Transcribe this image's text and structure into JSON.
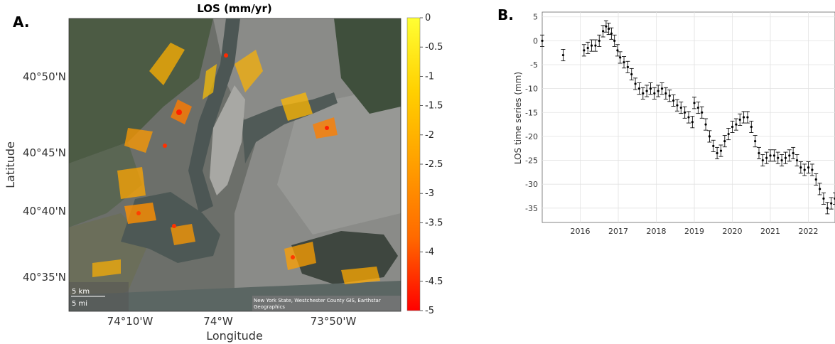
{
  "panel_a": {
    "label": "A.",
    "title": "LOS (mm/yr)",
    "ylabel": "Latitude",
    "xlabel": "Longitude",
    "lat_ticks": [
      "40°50'N",
      "40°45'N",
      "40°40'N",
      "40°35'N"
    ],
    "lon_ticks": [
      "74°10'W",
      "74°W",
      "73°50'W"
    ],
    "scalebar_km": "5 km",
    "scalebar_mi": "5 mi",
    "attribution_line1": "New York State, Westchester County GIS, Earthstar",
    "attribution_line2": "Geographics",
    "colorbar": {
      "ticks": [
        "0",
        "-0.5",
        "-1",
        "-1.5",
        "-2",
        "-2.5",
        "-3",
        "-3.5",
        "-4",
        "-4.5",
        "-5"
      ],
      "range": [
        -5,
        0
      ],
      "colors": [
        "#ff0000",
        "#ff6a00",
        "#ff9f00",
        "#ffd000",
        "#ffff33"
      ]
    }
  },
  "panel_b": {
    "label": "B."
  },
  "chart_data": {
    "type": "line",
    "title": "",
    "xlabel": "",
    "ylabel": "LOS time series (mm)",
    "xlim": [
      2015.0,
      2022.7
    ],
    "ylim": [
      -38,
      6
    ],
    "x_ticks": [
      "2016",
      "2017",
      "2018",
      "2019",
      "2020",
      "2021",
      "2022"
    ],
    "y_ticks": [
      "5",
      "0",
      "-5",
      "-10",
      "-15",
      "-20",
      "-25",
      "-30",
      "-35"
    ],
    "grid": true,
    "error_bar_mm": 1.2,
    "series": [
      {
        "x": [
          2015.0,
          2015.55,
          2016.1,
          2016.2,
          2016.3,
          2016.4,
          2016.5,
          2016.6,
          2016.68,
          2016.75,
          2016.82,
          2016.9,
          2016.98,
          2017.05,
          2017.15,
          2017.25,
          2017.35,
          2017.45,
          2017.55,
          2017.65,
          2017.75,
          2017.85,
          2017.95,
          2018.05,
          2018.15,
          2018.25,
          2018.35,
          2018.45,
          2018.55,
          2018.65,
          2018.75,
          2018.85,
          2018.95,
          2019.0,
          2019.1,
          2019.2,
          2019.3,
          2019.4,
          2019.5,
          2019.6,
          2019.7,
          2019.8,
          2019.9,
          2020.0,
          2020.1,
          2020.2,
          2020.3,
          2020.4,
          2020.5,
          2020.6,
          2020.7,
          2020.8,
          2020.9,
          2021.0,
          2021.1,
          2021.2,
          2021.3,
          2021.4,
          2021.5,
          2021.6,
          2021.7,
          2021.8,
          2021.9,
          2022.0,
          2022.1,
          2022.2,
          2022.3,
          2022.4,
          2022.5,
          2022.6,
          2022.7
        ],
        "y": [
          0,
          -3,
          -2,
          -1.5,
          -1,
          -1,
          0,
          2,
          3,
          2.5,
          1.5,
          0,
          -2,
          -3.5,
          -4.5,
          -5.5,
          -7,
          -9,
          -10,
          -11,
          -10.5,
          -10,
          -11,
          -10.5,
          -10,
          -11,
          -11.5,
          -12.5,
          -13.5,
          -14,
          -15,
          -16,
          -17,
          -13,
          -14,
          -15,
          -17.5,
          -20,
          -22,
          -23.5,
          -23,
          -21,
          -19.5,
          -18,
          -17.5,
          -16.5,
          -16,
          -16,
          -18,
          -21,
          -23.5,
          -25,
          -24.5,
          -24,
          -24,
          -24.5,
          -25,
          -24.5,
          -24,
          -23.5,
          -25,
          -26.5,
          -27,
          -26.5,
          -27,
          -29,
          -31,
          -33,
          -35,
          -34,
          -33
        ]
      }
    ]
  }
}
